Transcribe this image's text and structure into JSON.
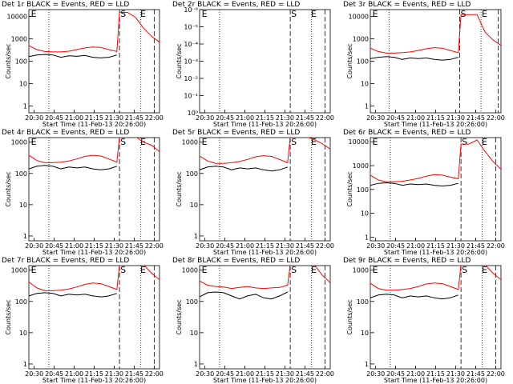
{
  "chart_data": [
    {
      "type": "line",
      "title": "Det 1r BLACK = Events, RED = LLD",
      "xlabel": "Start Time (11-Feb-13 20:26:00)",
      "ylabel": "Counts/sec",
      "log_y": true,
      "x": [
        "20:26",
        "20:32",
        "20:38",
        "20:44",
        "20:50",
        "20:56",
        "21:02",
        "21:08",
        "21:14",
        "21:20",
        "21:26",
        "21:32",
        "21:34",
        "21:40",
        "21:46",
        "21:52",
        "21:58",
        "22:04"
      ],
      "xlim": [
        "20:26",
        "22:04"
      ],
      "xticks": [
        "20:30",
        "20:45",
        "21:00",
        "21:15",
        "21:30",
        "21:45",
        "22:00"
      ],
      "ylim": [
        0.5,
        20000
      ],
      "yticks": [
        1,
        10,
        100,
        1000,
        10000
      ],
      "series": [
        {
          "name": "Events",
          "color": "#000000",
          "values": [
            160,
            190,
            200,
            190,
            150,
            175,
            165,
            180,
            150,
            140,
            150,
            190,
            null,
            null,
            null,
            null,
            null,
            null
          ]
        },
        {
          "name": "LLD",
          "color": "#ff0000",
          "values": [
            500,
            330,
            270,
            260,
            260,
            280,
            330,
            390,
            430,
            410,
            330,
            270,
            15000,
            15000,
            9000,
            3000,
            1300,
            700
          ]
        }
      ],
      "vlines": [
        {
          "x": "20:41",
          "style": "dotted"
        },
        {
          "x": "21:34",
          "style": "dashed"
        },
        {
          "x": "21:50",
          "style": "dotted"
        },
        {
          "x": "22:00",
          "style": "dashed"
        }
      ],
      "annotations": [
        {
          "text": "E",
          "x": "20:27"
        },
        {
          "text": "S",
          "x": "21:34"
        },
        {
          "text": "E",
          "x": "21:49"
        }
      ]
    },
    {
      "type": "line",
      "title": "Det 2r BLACK = Events, RED = LLD",
      "xlabel": "Start Time (11-Feb-13 20:26:00)",
      "ylabel": "Counts/sec",
      "log_y": true,
      "x": [],
      "xlim": [
        "20:26",
        "22:04"
      ],
      "xticks": [
        "20:30",
        "20:45",
        "21:00",
        "21:15",
        "21:30",
        "21:45",
        "22:00"
      ],
      "ylim": [
        1,
        1e-06
      ],
      "yticks": [
        {
          "value": 1,
          "label": "10⁰"
        },
        {
          "value": 0.1,
          "label": "10⁻¹"
        },
        {
          "value": 0.01,
          "label": "10⁻²"
        },
        {
          "value": 0.001,
          "label": "10⁻³"
        },
        {
          "value": 0.0001,
          "label": "10⁻⁴"
        },
        {
          "value": 1e-05,
          "label": "10⁻⁵"
        },
        {
          "value": 1e-06,
          "label": "10⁻⁶"
        }
      ],
      "series": [],
      "vlines": [
        {
          "x": "20:41",
          "style": "dotted"
        },
        {
          "x": "21:34",
          "style": "dashed"
        },
        {
          "x": "21:50",
          "style": "dotted"
        },
        {
          "x": "22:00",
          "style": "dashed"
        }
      ],
      "annotations": [
        {
          "text": "E",
          "x": "20:27"
        },
        {
          "text": "S",
          "x": "21:34"
        },
        {
          "text": "E",
          "x": "21:49"
        }
      ]
    },
    {
      "type": "line",
      "title": "Det 3r BLACK = Events, RED = LLD",
      "xlabel": "Start Time (11-Feb-13 20:26:00)",
      "ylabel": "Counts/sec",
      "log_y": true,
      "x": [
        "20:26",
        "20:32",
        "20:38",
        "20:44",
        "20:50",
        "20:56",
        "21:02",
        "21:08",
        "21:14",
        "21:20",
        "21:26",
        "21:32",
        "21:34",
        "21:40",
        "21:46",
        "21:52",
        "21:58",
        "22:04"
      ],
      "xlim": [
        "20:26",
        "22:04"
      ],
      "xticks": [
        "20:30",
        "20:45",
        "21:00",
        "21:15",
        "21:30",
        "21:45",
        "22:00"
      ],
      "ylim": [
        0.5,
        20000
      ],
      "yticks": [
        1,
        10,
        100,
        1000,
        10000
      ],
      "series": [
        {
          "name": "Events",
          "color": "#000000",
          "values": [
            130,
            150,
            160,
            150,
            120,
            140,
            130,
            140,
            120,
            110,
            120,
            150,
            null,
            null,
            null,
            null,
            null,
            null
          ]
        },
        {
          "name": "LLD",
          "color": "#ff0000",
          "values": [
            380,
            270,
            230,
            230,
            240,
            260,
            300,
            360,
            400,
            380,
            300,
            240,
            12000,
            12000,
            12000,
            2000,
            900,
            500
          ]
        }
      ],
      "vlines": [
        {
          "x": "20:40",
          "style": "dotted"
        },
        {
          "x": "21:33",
          "style": "dashed"
        },
        {
          "x": "21:49",
          "style": "dotted"
        },
        {
          "x": "22:02",
          "style": "dashed"
        }
      ],
      "annotations": [
        {
          "text": "E",
          "x": "20:27"
        },
        {
          "text": "S",
          "x": "21:33"
        },
        {
          "text": "E",
          "x": "21:49"
        }
      ]
    },
    {
      "type": "line",
      "title": "Det 4r BLACK = Events, RED = LLD",
      "xlabel": "Start Time (11-Feb-13 20:26:00)",
      "ylabel": "Counts/sec",
      "log_y": true,
      "x": [
        "20:26",
        "20:32",
        "20:38",
        "20:44",
        "20:50",
        "20:56",
        "21:02",
        "21:08",
        "21:14",
        "21:20",
        "21:26",
        "21:32",
        "21:34",
        "21:40",
        "21:46",
        "21:52",
        "21:58",
        "22:04"
      ],
      "xlim": [
        "20:26",
        "22:04"
      ],
      "xticks": [
        "20:30",
        "20:45",
        "21:00",
        "21:15",
        "21:30",
        "21:45",
        "22:00"
      ],
      "ylim": [
        0.7,
        1400
      ],
      "yticks": [
        1,
        10,
        100,
        1000
      ],
      "series": [
        {
          "name": "Events",
          "color": "#000000",
          "values": [
            140,
            170,
            180,
            170,
            140,
            160,
            150,
            160,
            140,
            130,
            140,
            170,
            null,
            null,
            null,
            null,
            null,
            null
          ]
        },
        {
          "name": "LLD",
          "color": "#ff0000",
          "values": [
            380,
            260,
            220,
            220,
            230,
            250,
            290,
            350,
            380,
            360,
            290,
            230,
            1500,
            1500,
            1500,
            1000,
            800,
            500
          ]
        }
      ],
      "vlines": [
        {
          "x": "20:41",
          "style": "dotted"
        },
        {
          "x": "21:34",
          "style": "dashed"
        },
        {
          "x": "21:50",
          "style": "dotted"
        },
        {
          "x": "22:00",
          "style": "dashed"
        }
      ],
      "annotations": [
        {
          "text": "E",
          "x": "20:27"
        },
        {
          "text": "S",
          "x": "21:34"
        },
        {
          "text": "E",
          "x": "21:49"
        }
      ]
    },
    {
      "type": "line",
      "title": "Det 5r BLACK = Events, RED = LLD",
      "xlabel": "Start Time (11-Feb-13 20:26:00)",
      "ylabel": "Counts/sec",
      "log_y": true,
      "x": [
        "20:26",
        "20:32",
        "20:38",
        "20:44",
        "20:50",
        "20:56",
        "21:02",
        "21:08",
        "21:14",
        "21:20",
        "21:26",
        "21:32",
        "21:34",
        "21:40",
        "21:46",
        "21:52",
        "21:58",
        "22:04"
      ],
      "xlim": [
        "20:26",
        "22:04"
      ],
      "xticks": [
        "20:30",
        "20:45",
        "21:00",
        "21:15",
        "21:30",
        "21:45",
        "22:00"
      ],
      "ylim": [
        0.7,
        1400
      ],
      "yticks": [
        1,
        10,
        100,
        1000
      ],
      "series": [
        {
          "name": "Events",
          "color": "#000000",
          "values": [
            130,
            160,
            170,
            160,
            130,
            150,
            140,
            150,
            130,
            120,
            130,
            160,
            null,
            null,
            null,
            null,
            null,
            null
          ]
        },
        {
          "name": "LLD",
          "color": "#ff0000",
          "values": [
            360,
            250,
            210,
            210,
            220,
            240,
            280,
            340,
            370,
            350,
            280,
            220,
            1500,
            1500,
            1500,
            1200,
            900,
            600
          ]
        }
      ],
      "vlines": [
        {
          "x": "20:41",
          "style": "dotted"
        },
        {
          "x": "21:34",
          "style": "dashed"
        },
        {
          "x": "21:50",
          "style": "dotted"
        },
        {
          "x": "22:00",
          "style": "dashed"
        }
      ],
      "annotations": [
        {
          "text": "E",
          "x": "20:27"
        },
        {
          "text": "S",
          "x": "21:34"
        },
        {
          "text": "E",
          "x": "21:49"
        }
      ]
    },
    {
      "type": "line",
      "title": "Det 6r BLACK = Events, RED = LLD",
      "xlabel": "Start Time (11-Feb-13 20:26:00)",
      "ylabel": "Counts/sec",
      "log_y": true,
      "x": [
        "20:26",
        "20:32",
        "20:38",
        "20:44",
        "20:50",
        "20:56",
        "21:02",
        "21:08",
        "21:14",
        "21:20",
        "21:26",
        "21:32",
        "21:34",
        "21:40",
        "21:46",
        "21:52",
        "21:58",
        "22:04"
      ],
      "xlim": [
        "20:26",
        "22:04"
      ],
      "xticks": [
        "20:30",
        "20:45",
        "21:00",
        "21:15",
        "21:30",
        "21:45",
        "22:00"
      ],
      "ylim": [
        0.7,
        15000
      ],
      "yticks": [
        1,
        10,
        100,
        1000,
        10000
      ],
      "series": [
        {
          "name": "Events",
          "color": "#000000",
          "values": [
            150,
            180,
            190,
            180,
            150,
            170,
            160,
            170,
            150,
            140,
            150,
            180,
            null,
            null,
            null,
            null,
            null,
            null
          ]
        },
        {
          "name": "LLD",
          "color": "#ff0000",
          "values": [
            400,
            250,
            210,
            210,
            220,
            250,
            290,
            360,
            420,
            400,
            330,
            280,
            8000,
            8000,
            12000,
            4000,
            1500,
            700
          ]
        }
      ],
      "vlines": [
        {
          "x": "20:41",
          "style": "dotted"
        },
        {
          "x": "21:34",
          "style": "dashed"
        },
        {
          "x": "21:50",
          "style": "dotted"
        },
        {
          "x": "22:00",
          "style": "dashed"
        }
      ],
      "annotations": [
        {
          "text": "E",
          "x": "20:27"
        },
        {
          "text": "S",
          "x": "21:34"
        },
        {
          "text": "E",
          "x": "21:49"
        }
      ]
    },
    {
      "type": "line",
      "title": "Det 7r BLACK = Events, RED = LLD",
      "xlabel": "Start Time (11-Feb-13 20:26:00)",
      "ylabel": "Counts/sec",
      "log_y": true,
      "x": [
        "20:26",
        "20:32",
        "20:38",
        "20:44",
        "20:50",
        "20:56",
        "21:02",
        "21:08",
        "21:14",
        "21:20",
        "21:26",
        "21:32",
        "21:34",
        "21:40",
        "21:46",
        "21:52",
        "21:58",
        "22:04"
      ],
      "xlim": [
        "20:26",
        "22:04"
      ],
      "xticks": [
        "20:30",
        "20:45",
        "21:00",
        "21:15",
        "21:30",
        "21:45",
        "22:00"
      ],
      "ylim": [
        0.7,
        1400
      ],
      "yticks": [
        1,
        10,
        100,
        1000
      ],
      "series": [
        {
          "name": "Events",
          "color": "#000000",
          "values": [
            150,
            180,
            190,
            180,
            150,
            170,
            160,
            170,
            150,
            140,
            150,
            180,
            null,
            null,
            null,
            null,
            null,
            null
          ]
        },
        {
          "name": "LLD",
          "color": "#ff0000",
          "values": [
            420,
            270,
            220,
            220,
            230,
            250,
            290,
            350,
            390,
            370,
            300,
            240,
            1500,
            1500,
            1500,
            1500,
            800,
            500
          ]
        }
      ],
      "vlines": [
        {
          "x": "20:41",
          "style": "dotted"
        },
        {
          "x": "21:34",
          "style": "dashed"
        },
        {
          "x": "21:50",
          "style": "dotted"
        },
        {
          "x": "22:00",
          "style": "dashed"
        }
      ],
      "annotations": [
        {
          "text": "E",
          "x": "20:27"
        },
        {
          "text": "S",
          "x": "21:34"
        },
        {
          "text": "E",
          "x": "21:49"
        }
      ]
    },
    {
      "type": "line",
      "title": "Det 8r BLACK = Events, RED = LLD",
      "xlabel": "Start Time (11-Feb-13 20:26:00)",
      "ylabel": "Counts/sec",
      "log_y": true,
      "x": [
        "20:26",
        "20:32",
        "20:38",
        "20:44",
        "20:50",
        "20:56",
        "21:02",
        "21:08",
        "21:14",
        "21:20",
        "21:26",
        "21:32",
        "21:34",
        "21:40",
        "21:46",
        "21:52",
        "21:58",
        "22:04"
      ],
      "xlim": [
        "20:26",
        "22:04"
      ],
      "xticks": [
        "20:30",
        "20:45",
        "21:00",
        "21:15",
        "21:30",
        "21:45",
        "22:00"
      ],
      "ylim": [
        0.7,
        1400
      ],
      "yticks": [
        1,
        10,
        100,
        1000
      ],
      "series": [
        {
          "name": "Events",
          "color": "#000000",
          "values": [
            140,
            190,
            200,
            190,
            150,
            120,
            150,
            170,
            130,
            120,
            150,
            200,
            null,
            null,
            null,
            null,
            null,
            null
          ]
        },
        {
          "name": "LLD",
          "color": "#ff0000",
          "values": [
            450,
            330,
            300,
            290,
            260,
            280,
            300,
            270,
            260,
            270,
            280,
            330,
            1500,
            1500,
            1500,
            1500,
            700,
            400
          ]
        }
      ],
      "vlines": [
        {
          "x": "20:41",
          "style": "dotted"
        },
        {
          "x": "21:34",
          "style": "dashed"
        },
        {
          "x": "21:50",
          "style": "dotted"
        },
        {
          "x": "22:00",
          "style": "dashed"
        }
      ],
      "annotations": [
        {
          "text": "E",
          "x": "20:27"
        },
        {
          "text": "S",
          "x": "21:34"
        },
        {
          "text": "E",
          "x": "21:49"
        }
      ]
    },
    {
      "type": "line",
      "title": "Det 9r BLACK = Events, RED = LLD",
      "xlabel": "Start Time (11-Feb-13 20:26:00)",
      "ylabel": "Counts/sec",
      "log_y": true,
      "x": [
        "20:26",
        "20:32",
        "20:38",
        "20:44",
        "20:50",
        "20:56",
        "21:02",
        "21:08",
        "21:14",
        "21:20",
        "21:26",
        "21:32",
        "21:34",
        "21:40",
        "21:46",
        "21:52",
        "21:58",
        "22:04"
      ],
      "xlim": [
        "20:26",
        "22:04"
      ],
      "xticks": [
        "20:30",
        "20:45",
        "21:00",
        "21:15",
        "21:30",
        "21:45",
        "22:00"
      ],
      "ylim": [
        0.7,
        1400
      ],
      "yticks": [
        1,
        10,
        100,
        1000
      ],
      "series": [
        {
          "name": "Events",
          "color": "#000000",
          "values": [
            130,
            160,
            170,
            160,
            130,
            150,
            140,
            150,
            130,
            120,
            130,
            160,
            null,
            null,
            null,
            null,
            null,
            null
          ]
        },
        {
          "name": "LLD",
          "color": "#ff0000",
          "values": [
            380,
            260,
            230,
            230,
            240,
            260,
            300,
            360,
            390,
            370,
            300,
            240,
            1500,
            1500,
            1500,
            1500,
            800,
            500
          ]
        }
      ],
      "vlines": [
        {
          "x": "20:41",
          "style": "dotted"
        },
        {
          "x": "21:34",
          "style": "dashed"
        },
        {
          "x": "21:50",
          "style": "dotted"
        },
        {
          "x": "22:00",
          "style": "dashed"
        }
      ],
      "annotations": [
        {
          "text": "E",
          "x": "20:27"
        },
        {
          "text": "S",
          "x": "21:34"
        },
        {
          "text": "E",
          "x": "21:49"
        }
      ]
    }
  ]
}
